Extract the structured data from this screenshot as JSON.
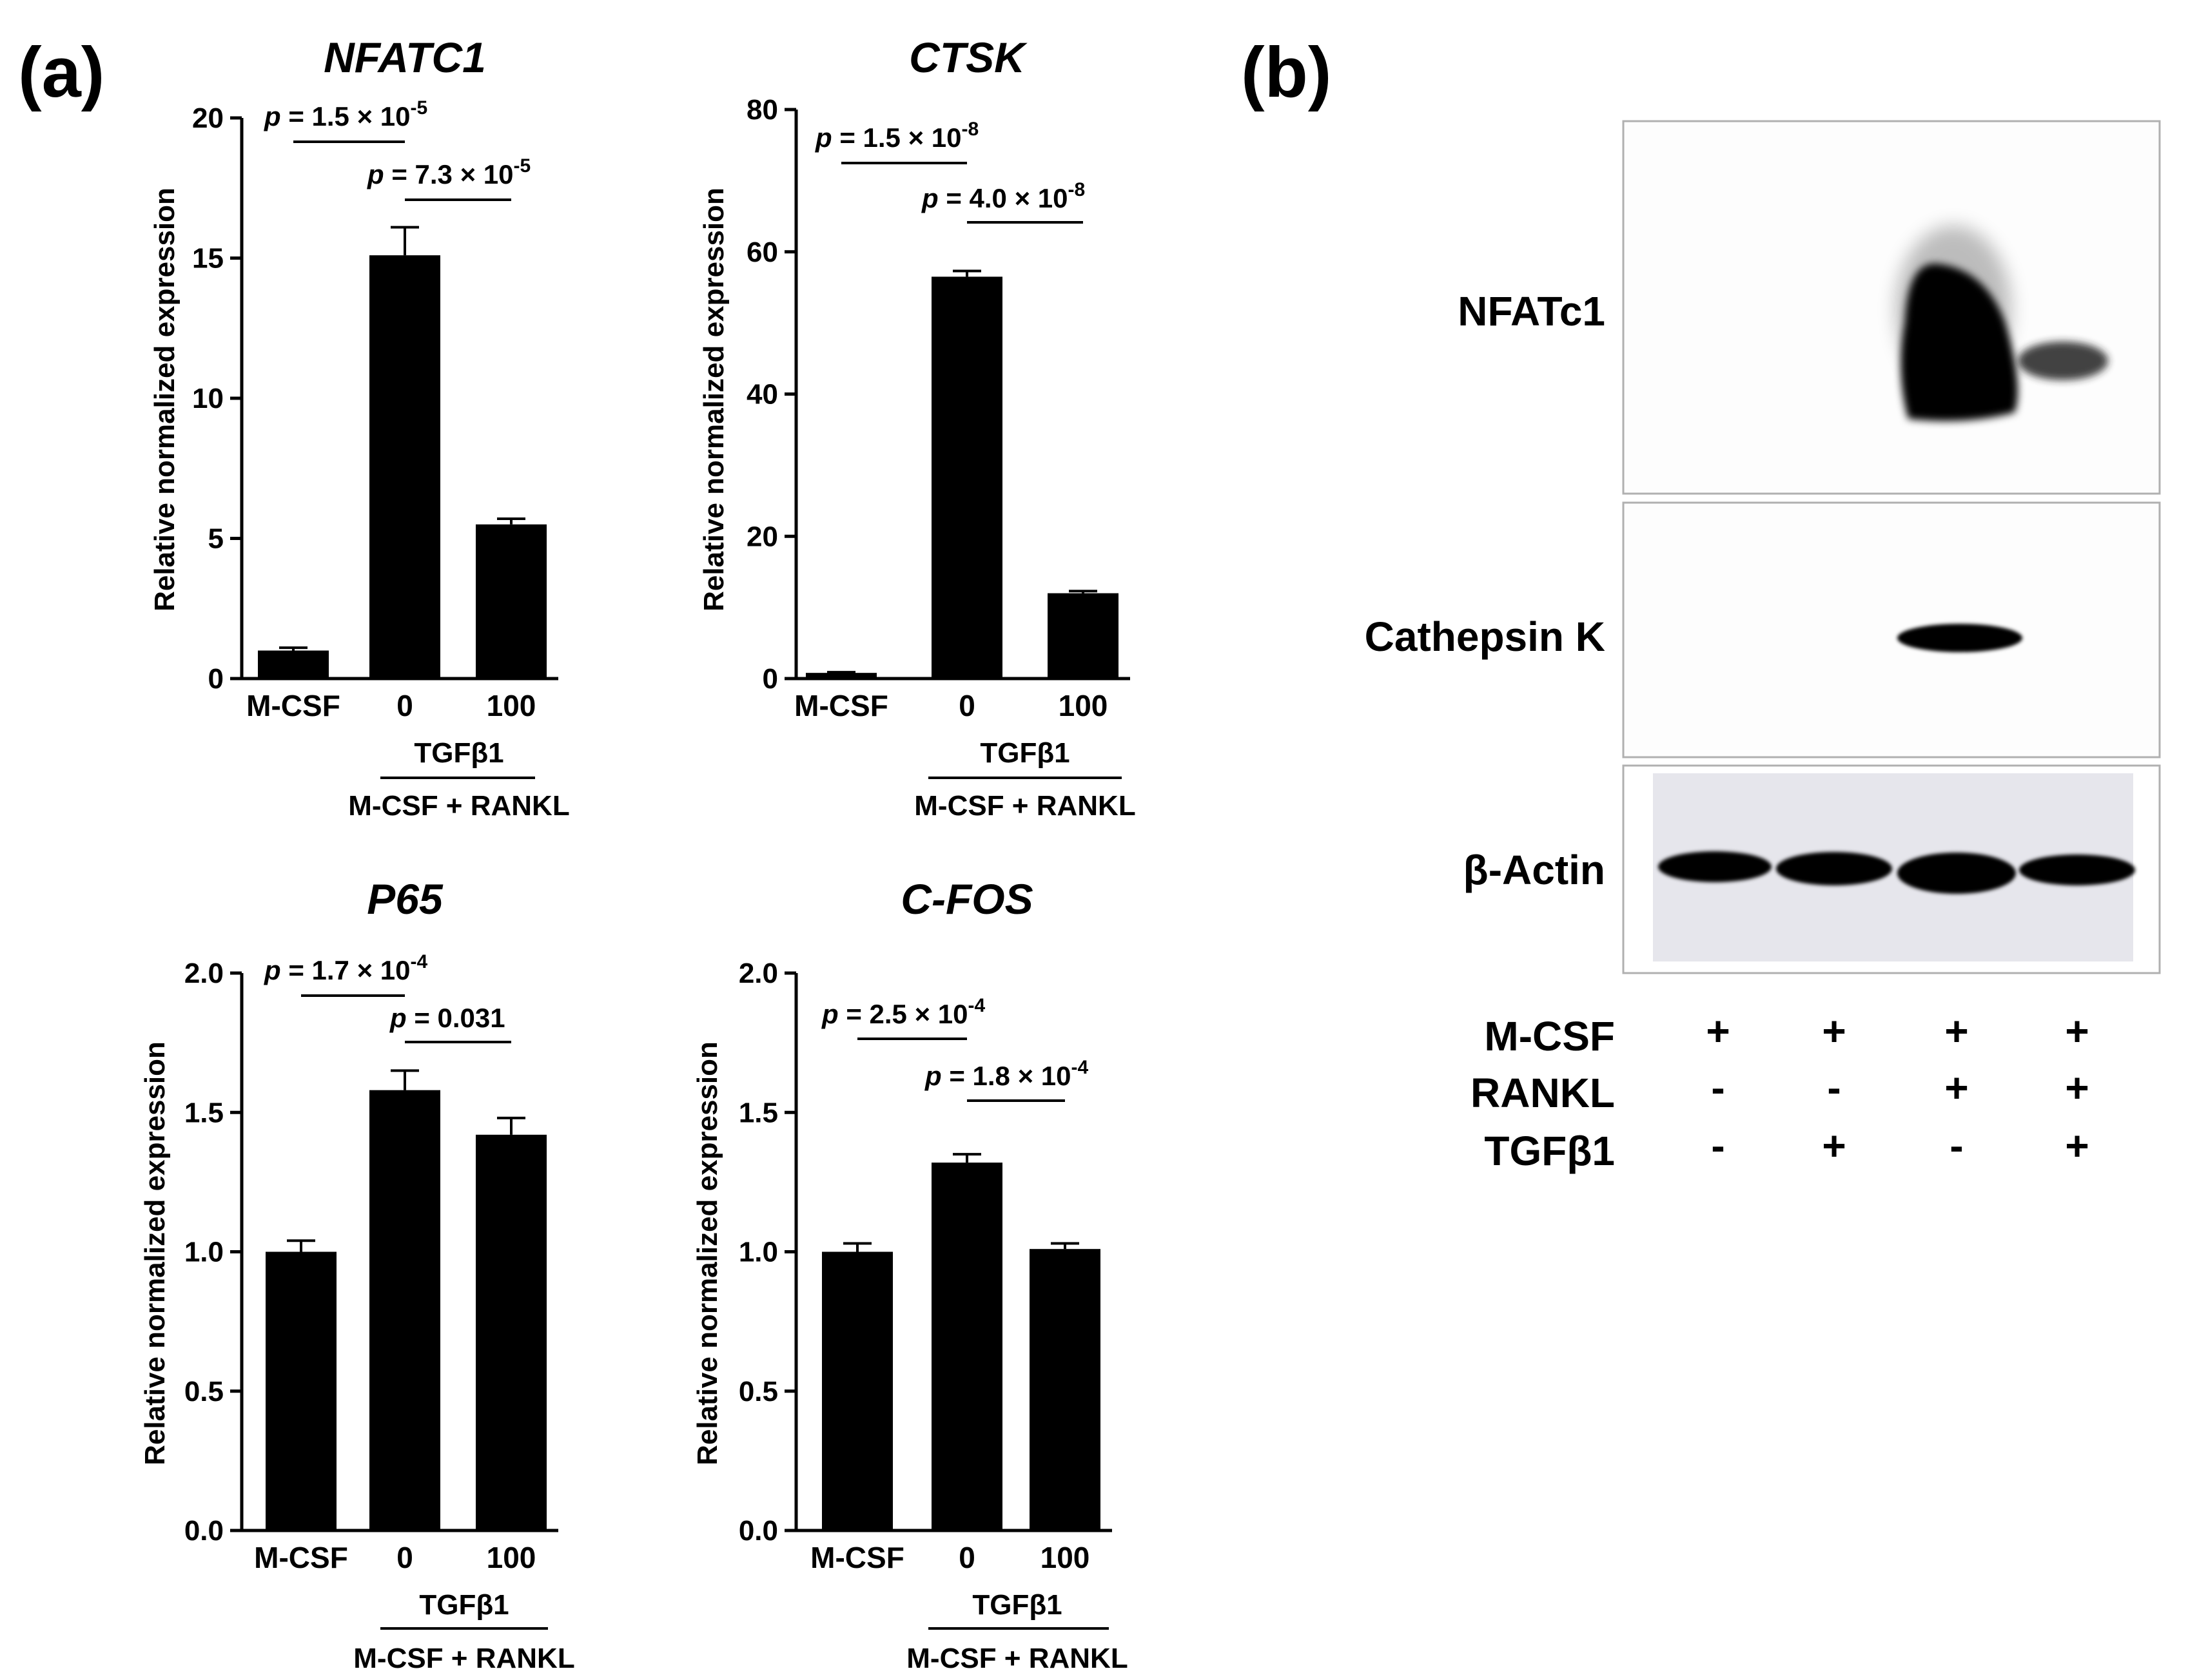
{
  "panel_a_label": "(a)",
  "panel_b_label": "(b)",
  "chart_data": [
    {
      "type": "bar",
      "title": "NFATC1",
      "ylabel": "Relative normalized expression",
      "ylim": [
        0,
        20
      ],
      "yticks": [
        "0",
        "5",
        "10",
        "15",
        "20"
      ],
      "ytick_values": [
        0,
        5,
        10,
        15,
        20
      ],
      "categories": [
        "M-CSF",
        "0",
        "100"
      ],
      "values": [
        1.0,
        15.1,
        5.5
      ],
      "errors": [
        0.1,
        1.0,
        0.2
      ],
      "group_label_top": "TGFβ1",
      "group_label_bottom": "M-CSF + RANKL",
      "comparisons": [
        {
          "from": 0,
          "to": 1,
          "prefix": "p = 1.5 × 10",
          "exp": "-5"
        },
        {
          "from": 1,
          "to": 2,
          "prefix": "p = 7.3 × 10",
          "exp": "-5"
        }
      ]
    },
    {
      "type": "bar",
      "title": "CTSK",
      "ylabel": "Relative normalized expression",
      "ylim": [
        0,
        80
      ],
      "yticks": [
        "0",
        "20",
        "40",
        "60",
        "80"
      ],
      "ytick_values": [
        0,
        20,
        40,
        60,
        80
      ],
      "categories": [
        "M-CSF",
        "0",
        "100"
      ],
      "values": [
        0.8,
        56.5,
        12.0
      ],
      "errors": [
        0.1,
        0.8,
        0.3
      ],
      "group_label_top": "TGFβ1",
      "group_label_bottom": "M-CSF + RANKL",
      "comparisons": [
        {
          "from": 0,
          "to": 1,
          "prefix": "p = 1.5 × 10",
          "exp": "-8"
        },
        {
          "from": 1,
          "to": 2,
          "prefix": "p = 4.0 × 10",
          "exp": "-8"
        }
      ]
    },
    {
      "type": "bar",
      "title": "P65",
      "ylabel": "Relative normalized expression",
      "ylim": [
        0,
        2.0
      ],
      "yticks": [
        "0.0",
        "0.5",
        "1.0",
        "1.5",
        "2.0"
      ],
      "ytick_values": [
        0,
        0.5,
        1.0,
        1.5,
        2.0
      ],
      "categories": [
        "M-CSF",
        "0",
        "100"
      ],
      "values": [
        1.0,
        1.58,
        1.42
      ],
      "errors": [
        0.04,
        0.07,
        0.06
      ],
      "group_label_top": "TGFβ1",
      "group_label_bottom": "M-CSF + RANKL",
      "comparisons": [
        {
          "from": 0,
          "to": 1,
          "prefix": "p = 1.7 × 10",
          "exp": "-4"
        },
        {
          "from": 1,
          "to": 2,
          "prefix": "p = 0.031",
          "exp": ""
        }
      ]
    },
    {
      "type": "bar",
      "title": "C-FOS",
      "ylabel": "Relative normalized expression",
      "ylim": [
        0,
        2.0
      ],
      "yticks": [
        "0.0",
        "0.5",
        "1.0",
        "1.5",
        "2.0"
      ],
      "ytick_values": [
        0,
        0.5,
        1.0,
        1.5,
        2.0
      ],
      "categories": [
        "M-CSF",
        "0",
        "100"
      ],
      "values": [
        1.0,
        1.32,
        1.01
      ],
      "errors": [
        0.03,
        0.03,
        0.02
      ],
      "group_label_top": "TGFβ1",
      "group_label_bottom": "M-CSF + RANKL",
      "comparisons": [
        {
          "from": 0,
          "to": 1,
          "prefix": "p = 2.5 × 10",
          "exp": "-4"
        },
        {
          "from": 1,
          "to": 2,
          "prefix": "p = 1.8 × 10",
          "exp": "-4"
        }
      ]
    }
  ],
  "western_blot": {
    "bands": [
      "NFATc1",
      "Cathepsin K",
      "β-Actin"
    ],
    "conditions": [
      {
        "name": "M-CSF",
        "values": [
          "+",
          "+",
          "+",
          "+"
        ]
      },
      {
        "name": "RANKL",
        "values": [
          "-",
          "-",
          "+",
          "+"
        ]
      },
      {
        "name": "TGFβ1",
        "values": [
          "-",
          "+",
          "-",
          "+"
        ]
      }
    ],
    "band_intensity": {
      "NFATc1": [
        0,
        0,
        1.0,
        0.35
      ],
      "Cathepsin K": [
        0,
        0,
        0.95,
        0
      ],
      "β-Actin": [
        0.9,
        0.9,
        0.95,
        0.85
      ]
    }
  }
}
